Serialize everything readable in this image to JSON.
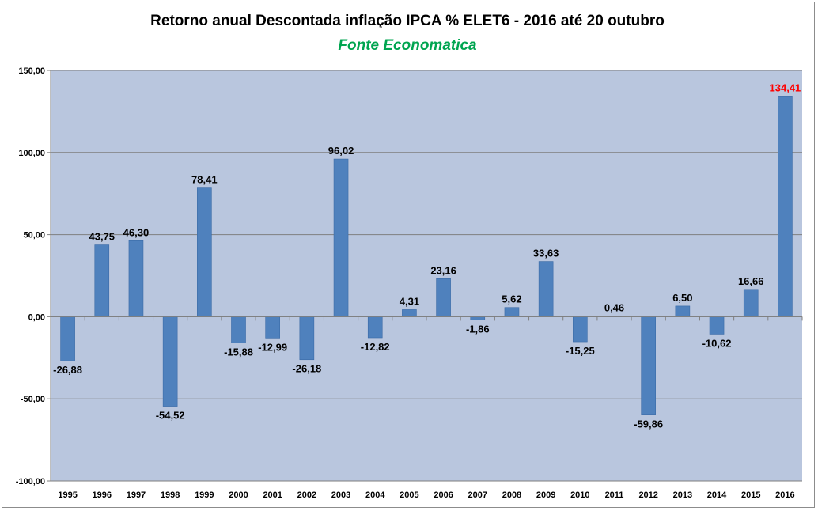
{
  "chart_data": {
    "type": "bar",
    "title": "Retorno anual Descontada inflação IPCA % ELET6 - 2016 até 20 outubro",
    "subtitle": "Fonte Economatica",
    "subtitle_color": "#00a550",
    "bar_color": "#4f81bd",
    "highlight_label_color": "#ff0000",
    "highlight_index": 21,
    "grid": true,
    "ylim": [
      -100,
      150
    ],
    "yticks": [
      -100,
      -50,
      0,
      50,
      100,
      150
    ],
    "ytick_labels": [
      "-100,00",
      "-50,00",
      "0,00",
      "50,00",
      "100,00",
      "150,00"
    ],
    "categories": [
      "1995",
      "1996",
      "1997",
      "1998",
      "1999",
      "2000",
      "2001",
      "2002",
      "2003",
      "2004",
      "2005",
      "2006",
      "2007",
      "2008",
      "2009",
      "2010",
      "2011",
      "2012",
      "2013",
      "2014",
      "2015",
      "2016"
    ],
    "values": [
      -26.88,
      43.75,
      46.3,
      -54.52,
      78.41,
      -15.88,
      -12.99,
      -26.18,
      96.02,
      -12.82,
      4.31,
      23.16,
      -1.86,
      5.62,
      33.63,
      -15.25,
      0.46,
      -59.86,
      6.5,
      -10.62,
      16.66,
      134.41
    ],
    "value_labels": [
      "-26,88",
      "43,75",
      "46,30",
      "-54,52",
      "78,41",
      "-15,88",
      "-12,99",
      "-26,18",
      "96,02",
      "-12,82",
      "4,31",
      "23,16",
      "-1,86",
      "5,62",
      "33,63",
      "-15,25",
      "0,46",
      "-59,86",
      "6,50",
      "-10,62",
      "16,66",
      "134,41"
    ]
  }
}
